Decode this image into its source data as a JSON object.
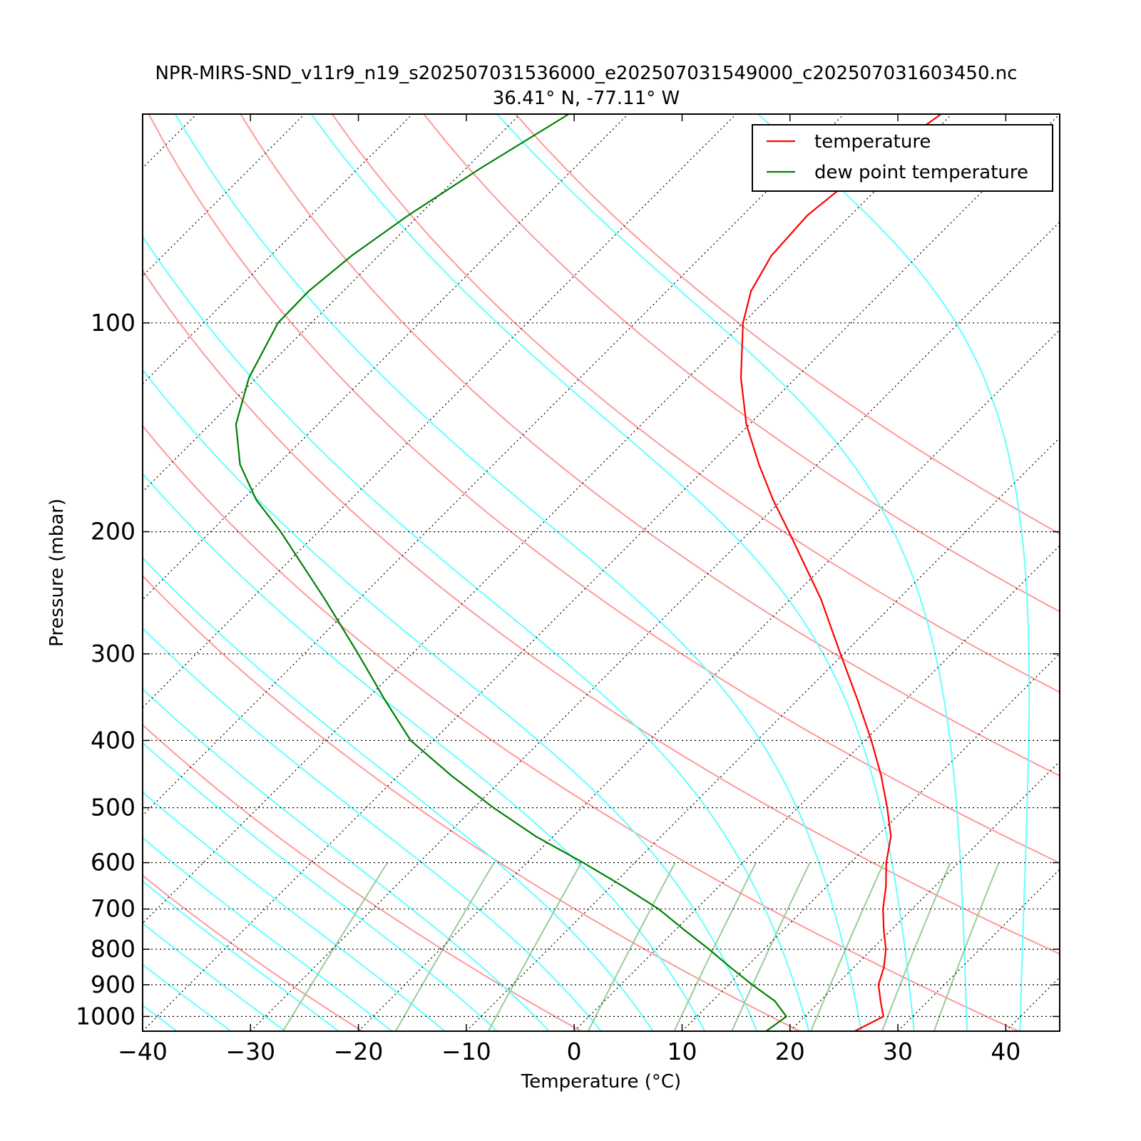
{
  "chart_data": {
    "type": "line",
    "subtype": "skew-T log-P diagram",
    "title_line1": "NPR-MIRS-SND_v11r9_n19_s202507031536000_e202507031549000_c202507031603450.nc",
    "title_line2": "36.41° N, -77.11° W",
    "xlabel": "Temperature (°C)",
    "ylabel": "Pressure (mbar)",
    "xlim": [
      -40,
      45
    ],
    "ylim": [
      1050,
      50
    ],
    "y_scale": "log",
    "x_ticks": [
      -40,
      -30,
      -20,
      -10,
      0,
      10,
      20,
      30,
      40
    ],
    "x_tick_labels": [
      "−40",
      "−30",
      "−20",
      "−10",
      "0",
      "10",
      "20",
      "30",
      "40"
    ],
    "y_ticks": [
      100,
      200,
      300,
      400,
      500,
      600,
      700,
      800,
      900,
      1000
    ],
    "y_tick_labels": [
      "100",
      "200",
      "300",
      "400",
      "500",
      "600",
      "700",
      "800",
      "900",
      "1000"
    ],
    "grid": "horizontal isobars and skewed isotherms, dotted",
    "legend_position": "top-right",
    "colors": {
      "temperature": "#ff0000",
      "dewpoint": "#007f00",
      "dry_adiabat": "#ff9999",
      "moist_adiabat": "#66ffff",
      "mixing_ratio": "#99cc99"
    },
    "series": [
      {
        "name": "temperature",
        "pressure": [
          1050,
          1000,
          950,
          900,
          850,
          800,
          750,
          700,
          650,
          600,
          550,
          500,
          450,
          400,
          350,
          300,
          250,
          200,
          180,
          160,
          140,
          120,
          100,
          90,
          80,
          70,
          60,
          50
        ],
        "temperature": [
          26.0,
          27.3,
          25.6,
          23.9,
          22.8,
          21.3,
          19.3,
          17.3,
          15.5,
          13.3,
          11.3,
          8.3,
          4.8,
          0.6,
          -4.4,
          -10.3,
          -17.2,
          -26.4,
          -30.8,
          -35.4,
          -40.3,
          -45.1,
          -50.0,
          -52.2,
          -53.6,
          -54.0,
          -53.0,
          -51.0
        ]
      },
      {
        "name": "dew point temperature",
        "pressure": [
          1050,
          1000,
          950,
          900,
          850,
          800,
          750,
          700,
          650,
          600,
          550,
          500,
          450,
          400,
          350,
          300,
          250,
          200,
          180,
          160,
          140,
          120,
          100,
          90,
          80,
          70,
          60,
          50
        ],
        "dewpoint": [
          17.8,
          18.3,
          15.8,
          12.2,
          8.6,
          4.9,
          0.8,
          -3.5,
          -8.8,
          -14.8,
          -21.6,
          -28.2,
          -35.0,
          -42.1,
          -48.2,
          -55.0,
          -63.2,
          -73.5,
          -78.7,
          -83.5,
          -87.6,
          -90.7,
          -93.1,
          -93.2,
          -92.5,
          -91.0,
          -88.7,
          -85.5
        ]
      }
    ],
    "background_lines": {
      "dry_adiabats_theta_K": [
        250,
        270,
        290,
        310,
        330,
        350,
        370,
        390,
        410,
        430
      ],
      "moist_adiabats_start_C_at_1000mb": [
        -40,
        -35,
        -30,
        -25,
        -20,
        -15,
        -10,
        -5,
        0,
        5,
        10,
        15,
        20,
        25,
        30,
        35,
        40,
        45
      ],
      "mixing_ratios_g_per_kg": [
        0.4,
        1,
        2,
        4,
        7,
        10,
        16,
        24,
        32
      ],
      "isotherms_C": [
        -120,
        -110,
        -100,
        -90,
        -80,
        -70,
        -60,
        -50,
        -40,
        -30,
        -20,
        -10,
        0,
        10,
        20,
        30,
        40
      ]
    }
  }
}
